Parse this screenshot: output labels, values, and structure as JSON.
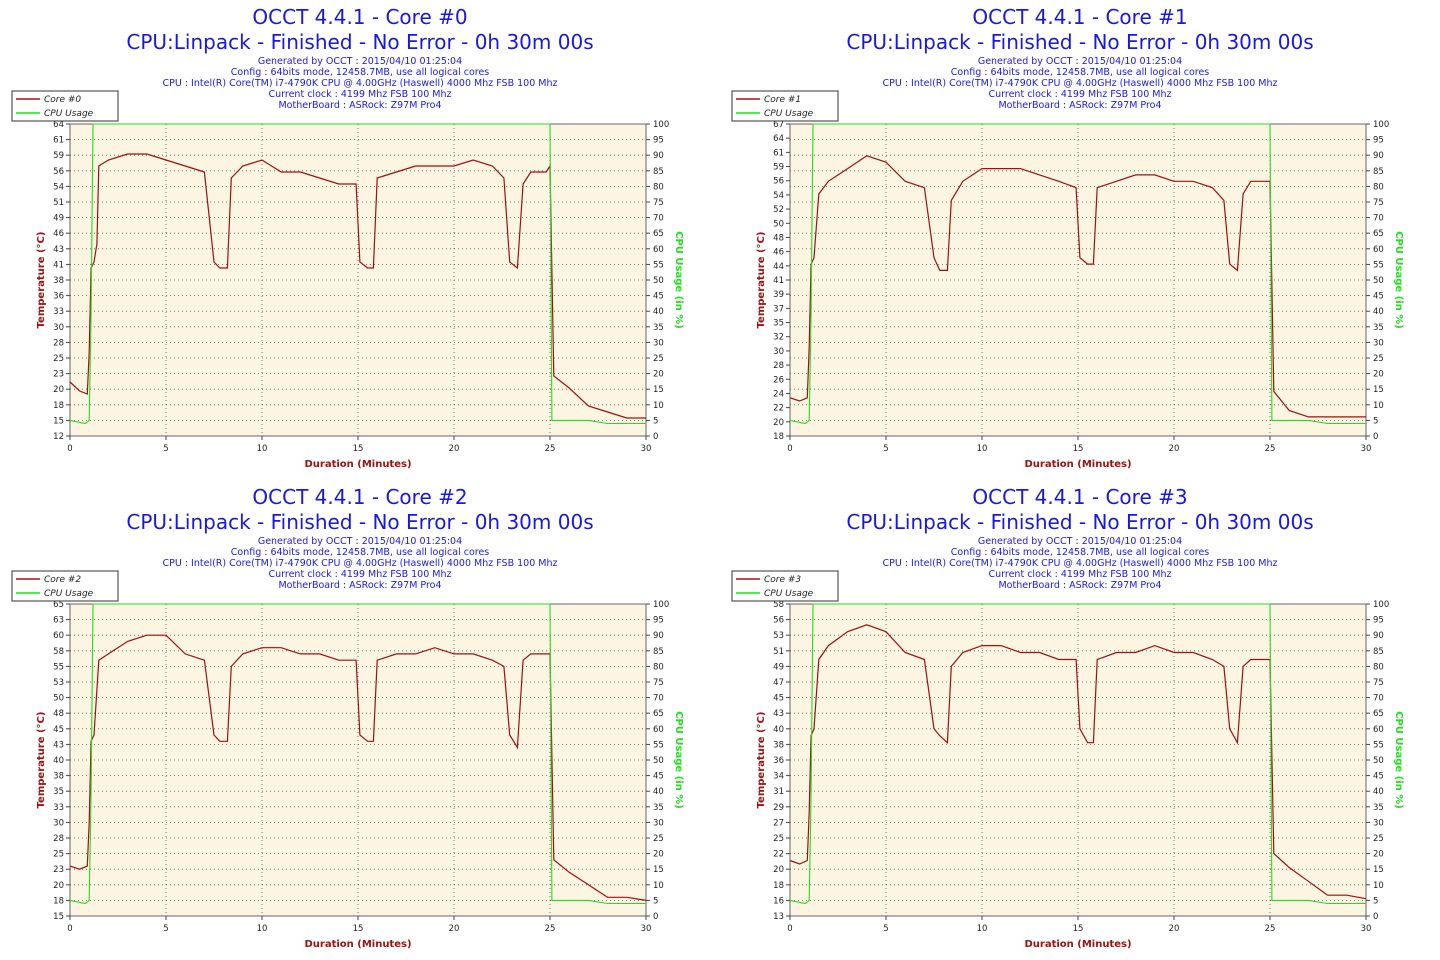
{
  "colors": {
    "temperature": "#a01010",
    "cpu_usage": "#22dd22",
    "plot_bg": "#fbf5e1",
    "title": "#1616ee"
  },
  "chart_data": [
    {
      "type": "line",
      "title": "OCCT 4.4.1 - Core #0",
      "subtitle": "CPU:Linpack - Finished - No Error - 0h 30m 00s",
      "info": [
        "Generated by OCCT : 2015/04/10 01:25:04",
        "Config : 64bits mode, 12458.7MB, use all logical cores",
        "CPU : Intel(R) Core(TM) i7-4790K CPU @ 4.00GHz (Haswell) 4000 Mhz FSB 100 Mhz",
        "Current clock : 4199 Mhz FSB 100 Mhz",
        "MotherBoard : ASRock: Z97M Pro4"
      ],
      "xlabel": "Duration (Minutes)",
      "ylabel": "Temperature (°C)",
      "y2label": "CPU Usage (in %)",
      "xlim": [
        0,
        30
      ],
      "ylim": [
        12,
        64
      ],
      "y2lim": [
        0,
        100
      ],
      "xticks": [
        "0",
        "5",
        "10",
        "15",
        "20",
        "25",
        "30"
      ],
      "yticks": [
        "12",
        "15",
        "18",
        "20",
        "23",
        "25",
        "28",
        "30",
        "33",
        "36",
        "38",
        "41",
        "43",
        "46",
        "49",
        "51",
        "54",
        "56",
        "59",
        "61",
        "64"
      ],
      "y2ticks": [
        "0",
        "5",
        "10",
        "15",
        "20",
        "25",
        "30",
        "35",
        "40",
        "45",
        "50",
        "55",
        "60",
        "65",
        "70",
        "75",
        "80",
        "85",
        "90",
        "95",
        "100"
      ],
      "grid": true,
      "legend": "top-left",
      "series": [
        {
          "name": "Core #0",
          "color": "#a01010",
          "axis": "left",
          "x": [
            0,
            0.5,
            0.9,
            1.0,
            1.1,
            1.25,
            1.4,
            1.5,
            2,
            3,
            4,
            5,
            6,
            7,
            7.5,
            7.8,
            8.2,
            8.4,
            9,
            10,
            11,
            12,
            13,
            14,
            14.9,
            15.1,
            15.5,
            15.8,
            16,
            17,
            18,
            19,
            20,
            21,
            22,
            22.6,
            22.9,
            23.3,
            23.6,
            24,
            24.8,
            25.0,
            25.2,
            26,
            27,
            28,
            29,
            30
          ],
          "y": [
            21,
            19.5,
            19,
            26,
            40,
            41,
            44,
            57,
            58,
            59,
            59,
            58,
            57,
            56,
            41,
            40,
            40,
            55,
            57,
            58,
            56,
            56,
            55,
            54,
            54,
            41,
            40,
            40,
            55,
            56,
            57,
            57,
            57,
            58,
            57,
            55,
            41,
            40,
            54,
            56,
            56,
            57,
            22,
            20,
            17,
            16,
            15,
            15
          ]
        },
        {
          "name": "CPU Usage",
          "color": "#22dd22",
          "axis": "right",
          "x": [
            0,
            0.8,
            1.0,
            1.1,
            1.2,
            24.9,
            25.0,
            25.1,
            26,
            27,
            28,
            29,
            30
          ],
          "y": [
            5,
            4,
            5,
            40,
            100,
            100,
            100,
            5,
            5,
            5,
            4,
            4,
            4
          ]
        }
      ]
    },
    {
      "type": "line",
      "title": "OCCT 4.4.1 - Core #1",
      "subtitle": "CPU:Linpack - Finished - No Error - 0h 30m 00s",
      "info": [
        "Generated by OCCT : 2015/04/10 01:25:04",
        "Config : 64bits mode, 12458.7MB, use all logical cores",
        "CPU : Intel(R) Core(TM) i7-4790K CPU @ 4.00GHz (Haswell) 4000 Mhz FSB 100 Mhz",
        "Current clock : 4199 Mhz FSB 100 Mhz",
        "MotherBoard : ASRock: Z97M Pro4"
      ],
      "xlabel": "Duration (Minutes)",
      "ylabel": "Temperature (°C)",
      "y2label": "CPU Usage (in %)",
      "xlim": [
        0,
        30
      ],
      "ylim": [
        18,
        67
      ],
      "y2lim": [
        0,
        100
      ],
      "xticks": [
        "0",
        "5",
        "10",
        "15",
        "20",
        "25",
        "30"
      ],
      "yticks": [
        "18",
        "20",
        "22",
        "24",
        "26",
        "28",
        "30",
        "32",
        "35",
        "37",
        "39",
        "41",
        "44",
        "46",
        "48",
        "50",
        "52",
        "54",
        "56",
        "59",
        "61",
        "64",
        "67"
      ],
      "y2ticks": [
        "0",
        "5",
        "10",
        "15",
        "20",
        "25",
        "30",
        "35",
        "40",
        "45",
        "50",
        "55",
        "60",
        "65",
        "70",
        "75",
        "80",
        "85",
        "90",
        "95",
        "100"
      ],
      "grid": true,
      "legend": "top-left",
      "series": [
        {
          "name": "Core #1",
          "color": "#a01010",
          "axis": "left",
          "x": [
            0,
            0.5,
            0.9,
            1.0,
            1.1,
            1.25,
            1.5,
            2,
            3,
            4,
            5,
            6,
            7,
            7.5,
            7.8,
            8.2,
            8.4,
            9,
            10,
            11,
            12,
            13,
            14,
            14.9,
            15.1,
            15.5,
            15.8,
            16,
            17,
            18,
            19,
            20,
            21,
            22,
            22.6,
            22.9,
            23.3,
            23.6,
            24,
            24.8,
            25.0,
            25.2,
            26,
            27,
            28,
            29,
            30
          ],
          "y": [
            24,
            23.5,
            24,
            32,
            45,
            46,
            56,
            58,
            60,
            62,
            61,
            58,
            57,
            46,
            44,
            44,
            55,
            58,
            60,
            60,
            60,
            59,
            58,
            57,
            46,
            45,
            45,
            57,
            58,
            59,
            59,
            58,
            58,
            57,
            55,
            45,
            44,
            56,
            58,
            58,
            58,
            25,
            22,
            21,
            21,
            21,
            21
          ]
        },
        {
          "name": "CPU Usage",
          "color": "#22dd22",
          "axis": "right",
          "x": [
            0,
            0.8,
            1.0,
            1.1,
            1.2,
            24.9,
            25.0,
            25.1,
            26,
            27,
            28,
            29,
            30
          ],
          "y": [
            5,
            4,
            5,
            40,
            100,
            100,
            100,
            5,
            5,
            5,
            4,
            4,
            4
          ]
        }
      ]
    },
    {
      "type": "line",
      "title": "OCCT 4.4.1 - Core #2",
      "subtitle": "CPU:Linpack - Finished - No Error - 0h 30m 00s",
      "info": [
        "Generated by OCCT : 2015/04/10 01:25:04",
        "Config : 64bits mode, 12458.7MB, use all logical cores",
        "CPU : Intel(R) Core(TM) i7-4790K CPU @ 4.00GHz (Haswell) 4000 Mhz FSB 100 Mhz",
        "Current clock : 4199 Mhz FSB 100 Mhz",
        "MotherBoard : ASRock: Z97M Pro4"
      ],
      "xlabel": "Duration (Minutes)",
      "ylabel": "Temperature (°C)",
      "y2label": "CPU Usage (in %)",
      "xlim": [
        0,
        30
      ],
      "ylim": [
        15,
        65
      ],
      "y2lim": [
        0,
        100
      ],
      "xticks": [
        "0",
        "5",
        "10",
        "15",
        "20",
        "25",
        "30"
      ],
      "yticks": [
        "15",
        "18",
        "20",
        "23",
        "25",
        "28",
        "30",
        "33",
        "35",
        "38",
        "40",
        "43",
        "45",
        "48",
        "50",
        "53",
        "55",
        "58",
        "60",
        "63",
        "65"
      ],
      "y2ticks": [
        "0",
        "5",
        "10",
        "15",
        "20",
        "25",
        "30",
        "35",
        "40",
        "45",
        "50",
        "55",
        "60",
        "65",
        "70",
        "75",
        "80",
        "85",
        "90",
        "95",
        "100"
      ],
      "grid": true,
      "legend": "top-left",
      "series": [
        {
          "name": "Core #2",
          "color": "#a01010",
          "axis": "left",
          "x": [
            0,
            0.5,
            0.9,
            1.0,
            1.1,
            1.25,
            1.5,
            2,
            3,
            4,
            5,
            6,
            7,
            7.5,
            7.8,
            8.2,
            8.4,
            9,
            10,
            11,
            12,
            13,
            14,
            14.9,
            15.1,
            15.5,
            15.8,
            16,
            17,
            18,
            19,
            20,
            21,
            22,
            22.6,
            22.9,
            23.3,
            23.6,
            24,
            24.8,
            25.0,
            25.2,
            26,
            27,
            28,
            29,
            30
          ],
          "y": [
            23,
            22.5,
            23,
            30,
            43,
            44,
            56,
            57,
            59,
            60,
            60,
            57,
            56,
            44,
            43,
            43,
            55,
            57,
            58,
            58,
            57,
            57,
            56,
            56,
            44,
            43,
            43,
            56,
            57,
            57,
            58,
            57,
            57,
            56,
            55,
            44,
            42,
            56,
            57,
            57,
            57,
            24,
            22,
            20,
            18,
            18,
            17.5
          ]
        },
        {
          "name": "CPU Usage",
          "color": "#22dd22",
          "axis": "right",
          "x": [
            0,
            0.8,
            1.0,
            1.1,
            1.2,
            24.9,
            25.0,
            25.1,
            26,
            27,
            28,
            29,
            30
          ],
          "y": [
            5,
            4,
            5,
            40,
            100,
            100,
            100,
            5,
            5,
            5,
            4,
            4,
            4
          ]
        }
      ]
    },
    {
      "type": "line",
      "title": "OCCT 4.4.1 - Core #3",
      "subtitle": "CPU:Linpack - Finished - No Error - 0h 30m 00s",
      "info": [
        "Generated by OCCT : 2015/04/10 01:25:04",
        "Config : 64bits mode, 12458.7MB, use all logical cores",
        "CPU : Intel(R) Core(TM) i7-4790K CPU @ 4.00GHz (Haswell) 4000 Mhz FSB 100 Mhz",
        "Current clock : 4199 Mhz FSB 100 Mhz",
        "MotherBoard : ASRock: Z97M Pro4"
      ],
      "xlabel": "Duration (Minutes)",
      "ylabel": "Temperature (°C)",
      "y2label": "CPU Usage (in %)",
      "xlim": [
        0,
        30
      ],
      "ylim": [
        13,
        58
      ],
      "y2lim": [
        0,
        100
      ],
      "xticks": [
        "0",
        "5",
        "10",
        "15",
        "20",
        "25",
        "30"
      ],
      "yticks": [
        "13",
        "16",
        "18",
        "20",
        "22",
        "25",
        "27",
        "29",
        "31",
        "34",
        "36",
        "38",
        "40",
        "43",
        "45",
        "47",
        "49",
        "51",
        "53",
        "56",
        "58"
      ],
      "y2ticks": [
        "0",
        "5",
        "10",
        "15",
        "20",
        "25",
        "30",
        "35",
        "40",
        "45",
        "50",
        "55",
        "60",
        "65",
        "70",
        "75",
        "80",
        "85",
        "90",
        "95",
        "100"
      ],
      "grid": true,
      "legend": "top-left",
      "series": [
        {
          "name": "Core #3",
          "color": "#a01010",
          "axis": "left",
          "x": [
            0,
            0.5,
            0.9,
            1.0,
            1.1,
            1.25,
            1.5,
            2,
            3,
            4,
            5,
            6,
            7,
            7.5,
            7.8,
            8.2,
            8.4,
            9,
            10,
            11,
            12,
            13,
            14,
            14.9,
            15.1,
            15.5,
            15.8,
            16,
            17,
            18,
            19,
            20,
            21,
            22,
            22.6,
            22.9,
            23.3,
            23.6,
            24,
            24.8,
            25.0,
            25.2,
            26,
            27,
            28,
            29,
            30
          ],
          "y": [
            21,
            20.5,
            21,
            28,
            39,
            40,
            50,
            52,
            54,
            55,
            54,
            51,
            50,
            40,
            39,
            38,
            49,
            51,
            52,
            52,
            51,
            51,
            50,
            50,
            40,
            38,
            38,
            50,
            51,
            51,
            52,
            51,
            51,
            50,
            49,
            40,
            38,
            49,
            50,
            50,
            50,
            22,
            20,
            18,
            16,
            16,
            15.5
          ]
        },
        {
          "name": "CPU Usage",
          "color": "#22dd22",
          "axis": "right",
          "x": [
            0,
            0.8,
            1.0,
            1.1,
            1.2,
            24.9,
            25.0,
            25.1,
            26,
            27,
            28,
            29,
            30
          ],
          "y": [
            5,
            4,
            5,
            40,
            100,
            100,
            100,
            5,
            5,
            5,
            4,
            4,
            4
          ]
        }
      ]
    }
  ]
}
